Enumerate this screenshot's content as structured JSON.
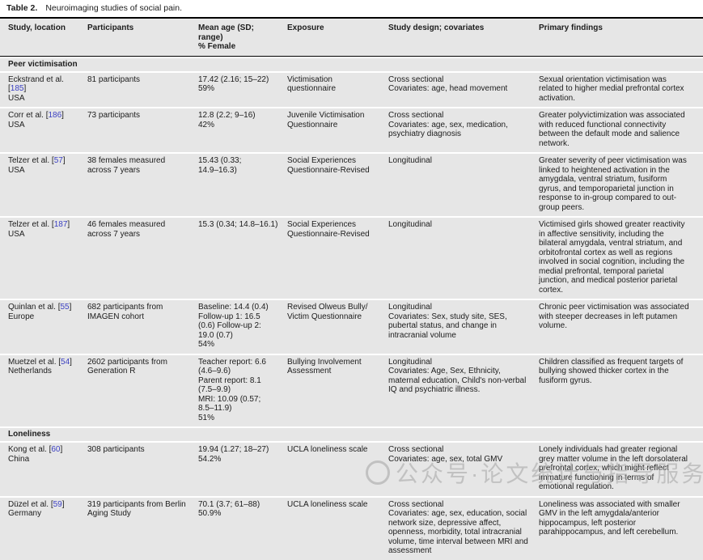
{
  "caption": {
    "label": "Table 2.",
    "text": "Neuroimaging studies of social pain."
  },
  "refs": {
    "open": "[",
    "close": "]"
  },
  "colors": {
    "row_bg": "#e6e6e6",
    "ref_blue": "#3a3fc1",
    "rule": "#000000"
  },
  "columns": {
    "study_location": "Study, location",
    "participants": "Participants",
    "mean_age": "Mean age (SD;\nrange)\n% Female",
    "exposure": "Exposure",
    "design": "Study design; covariates",
    "findings": "Primary findings"
  },
  "sections": [
    {
      "title": "Peer victimisation",
      "rows": [
        {
          "study": "Eckstrand et al.",
          "ref": "185",
          "location": "USA",
          "participants": "81 participants",
          "age": "17.42 (2.16; 15–22)\n59%",
          "exposure": "Victimisation questionnaire",
          "design": "Cross sectional\nCovariates: age, head movement",
          "findings": "Sexual orientation victimisation was related to higher medial prefrontal cortex activation."
        },
        {
          "study": "Corr et al.",
          "ref": "186",
          "location": "USA",
          "participants": "73 participants",
          "age": "12.8 (2.2; 9–16)\n42%",
          "exposure": "Juvenile Victimisation Questionnaire",
          "design": "Cross sectional\nCovariates: age, sex, medication, psychiatry diagnosis",
          "findings": "Greater polyvictimization was associated with reduced functional connectivity between the default mode and salience network."
        },
        {
          "study": "Telzer et al.",
          "ref": "57",
          "location": "USA",
          "participants": "38 females measured across 7 years",
          "age": "15.43 (0.33;\n14.9–16.3)",
          "exposure": "Social Experiences Questionnaire-Revised",
          "design": "Longitudinal",
          "findings": "Greater severity of peer victimisation was linked to heightened activation in the amygdala, ventral striatum, fusiform gyrus, and temporoparietal junction in response to in-group compared to out-group peers."
        },
        {
          "study": "Telzer et al.",
          "ref": "187",
          "location": "USA",
          "participants": "46 females measured across 7 years",
          "age": "15.3 (0.34; 14.8–16.1)",
          "exposure": "Social Experiences Questionnaire-Revised",
          "design": "Longitudinal",
          "findings": "Victimised girls showed greater reactivity in affective sensitivity, including the bilateral amygdala, ventral striatum, and orbitofrontal cortex as well as regions involved in social cognition, including the medial prefrontal, temporal parietal junction, and medical posterior parietal cortex."
        },
        {
          "study": "Quinlan et al.",
          "ref": "55",
          "location": "Europe",
          "participants": "682 participants from IMAGEN cohort",
          "age": "Baseline: 14.4 (0.4)\nFollow-up 1: 16.5\n(0.6) Follow-up 2:\n19.0 (0.7)\n54%",
          "exposure": "Revised Olweus Bully/\nVictim Questionnaire",
          "design": "Longitudinal\nCovariates: Sex, study site, SES, pubertal status, and change in intracranial volume",
          "findings": "Chronic peer victimisation was associated with steeper decreases in left putamen volume."
        },
        {
          "study": "Muetzel et al.",
          "ref": "54",
          "location": "Netherlands",
          "participants": "2602 participants from Generation R",
          "age": "Teacher report: 6.6\n(4.6–9.6)\nParent report: 8.1\n(7.5–9.9)\nMRI: 10.09 (0.57;\n8.5–11.9)\n51%",
          "exposure": "Bullying Involvement Assessment",
          "design": "Longitudinal\nCovariates: Age, Sex, Ethnicity, maternal education, Child's non-verbal IQ and psychiatric illness.",
          "findings": "Children classified as frequent targets of bullying showed thicker cortex in the fusiform gyrus."
        }
      ]
    },
    {
      "title": "Loneliness",
      "rows": [
        {
          "study": "Kong et al.",
          "ref": "60",
          "location": "China",
          "participants": "308 participants",
          "age": "19.94 (1.27; 18–27)\n54.2%",
          "exposure": "UCLA loneliness scale",
          "design": "Cross sectional\nCovariates: age, sex, total GMV",
          "findings": "Lonely individuals had greater regional grey matter volume in the left dorsolateral prefrontal cortex, which might reflect immature functioning in terms of emotional regulation."
        },
        {
          "study": "Düzel et al.",
          "ref": "59",
          "location": "Germany",
          "participants": "319 participants from Berlin Aging Study",
          "age": "70.1 (3.7; 61–88)\n50.9%",
          "exposure": "UCLA loneliness scale",
          "design": "Cross sectional\nCovariates: age, sex, education, social network size, depressive affect, openness, morbidity, total intracranial volume, time interval between MRI and assessment",
          "findings": "Loneliness was associated with smaller GMV in the left amygdala/anterior hippocampus, left posterior parahippocampus, and left cerebellum."
        }
      ]
    }
  ],
  "watermark": {
    "text": "公众号·论文统计与指导服务"
  }
}
